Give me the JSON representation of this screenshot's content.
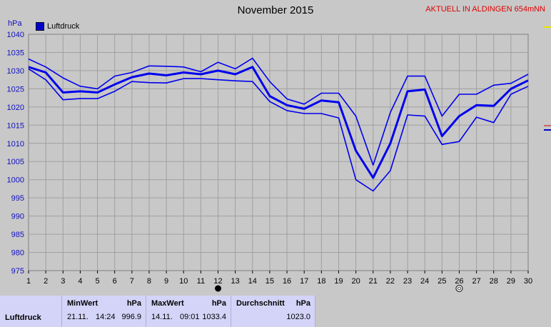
{
  "header": {
    "title": "November 2015",
    "station": "AKTUELL IN ALDINGEN 654mNN",
    "y_unit": "hPa",
    "legend_label": "Luftdruck"
  },
  "chart_data": {
    "type": "line",
    "title": "November 2015",
    "ylabel": "hPa",
    "ylim": [
      975,
      1040
    ],
    "yticks": [
      975,
      980,
      985,
      990,
      995,
      1000,
      1005,
      1010,
      1015,
      1020,
      1025,
      1030,
      1035,
      1040
    ],
    "x": [
      1,
      2,
      3,
      4,
      5,
      6,
      7,
      8,
      9,
      10,
      11,
      12,
      13,
      14,
      15,
      16,
      17,
      18,
      19,
      20,
      21,
      22,
      23,
      24,
      25,
      26,
      27,
      28,
      29,
      30
    ],
    "grid": true,
    "legend": "top-left",
    "colors": {
      "lines": "#0000ee",
      "grid": "#a0a0a0",
      "axis_text": "#1010c0",
      "stats_bg": "#d4d4f8"
    },
    "series": [
      {
        "name": "Luftdruck",
        "role": "mean",
        "values": [
          1031.0,
          1029.5,
          1024.0,
          1024.3,
          1024.0,
          1026.2,
          1028.2,
          1029.2,
          1028.7,
          1029.5,
          1029.0,
          1030.0,
          1029.0,
          1031.0,
          1023.0,
          1020.5,
          1019.5,
          1021.8,
          1021.3,
          1008.0,
          1000.5,
          1010.0,
          1024.3,
          1024.8,
          1012.0,
          1017.5,
          1020.5,
          1020.3,
          1025.0,
          1027.3
        ]
      },
      {
        "role": "max",
        "values": [
          1033.2,
          1031.0,
          1028.0,
          1025.7,
          1025.0,
          1028.5,
          1029.5,
          1031.3,
          1031.2,
          1031.0,
          1029.7,
          1032.3,
          1030.5,
          1033.4,
          1027.0,
          1022.2,
          1020.8,
          1023.8,
          1023.8,
          1017.5,
          1004.0,
          1018.5,
          1028.5,
          1028.5,
          1017.5,
          1023.5,
          1023.5,
          1026.0,
          1026.5,
          1029.0
        ]
      },
      {
        "role": "min",
        "values": [
          1030.5,
          1027.5,
          1022.0,
          1022.3,
          1022.3,
          1024.3,
          1027.0,
          1026.7,
          1026.6,
          1027.8,
          1027.8,
          1027.5,
          1027.2,
          1027.0,
          1021.5,
          1019.0,
          1018.2,
          1018.2,
          1017.0,
          1000.0,
          996.9,
          1002.5,
          1017.8,
          1017.5,
          1009.7,
          1010.5,
          1017.2,
          1015.7,
          1023.5,
          1025.7
        ]
      }
    ],
    "markers": [
      {
        "x": 12,
        "symbol": "full-moon-dot"
      },
      {
        "x": 26,
        "symbol": "new-moon-circle"
      }
    ]
  },
  "stats": {
    "row_label": "Luftdruck",
    "min": {
      "label": "MinWert",
      "unit": "hPa",
      "date": "21.11.",
      "time": "14:24",
      "value": "996.9"
    },
    "max": {
      "label": "MaxWert",
      "unit": "hPa",
      "date": "14.11.",
      "time": "09:01",
      "value": "1033.4"
    },
    "avg": {
      "label": "Durchschnitt",
      "unit": "hPa",
      "value": "1023.0"
    }
  }
}
